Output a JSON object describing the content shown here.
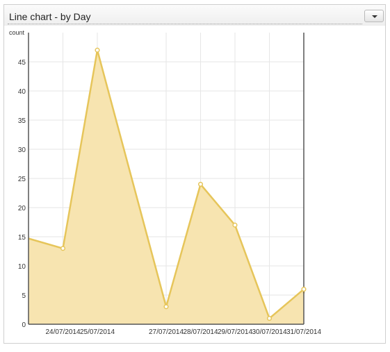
{
  "panel": {
    "title": "Line chart - by Day",
    "menu_icon": "caret-down-icon"
  },
  "chart_data": {
    "type": "area",
    "title": "",
    "xlabel": "",
    "ylabel": "count",
    "ylim": [
      0,
      50
    ],
    "yticks": [
      0,
      5,
      10,
      15,
      20,
      25,
      30,
      35,
      40,
      45
    ],
    "grid": true,
    "legend": "none",
    "x_range": [
      "23/07/2014",
      "31/07/2014"
    ],
    "categories": [
      "24/07/2014",
      "25/07/2014",
      "27/07/2014",
      "28/07/2014",
      "29/07/2014",
      "30/07/2014",
      "31/07/2014"
    ],
    "series": [
      {
        "points": [
          {
            "x": "24/07/2014",
            "y": 13
          },
          {
            "x": "25/07/2014",
            "y": 47
          },
          {
            "x": "27/07/2014",
            "y": 3
          },
          {
            "x": "28/07/2014",
            "y": 24
          },
          {
            "x": "29/07/2014",
            "y": 17
          },
          {
            "x": "30/07/2014",
            "y": 1
          },
          {
            "x": "31/07/2014",
            "y": 6
          }
        ],
        "left_edge_y": 14.7,
        "right_edge_y": 5.3
      }
    ],
    "colors": {
      "line": "#e6c55a",
      "fill": "#f7e4b0",
      "point_fill": "#ffffff",
      "grid": "#e6e6e6",
      "axis": "#555555",
      "text": "#333333"
    }
  }
}
